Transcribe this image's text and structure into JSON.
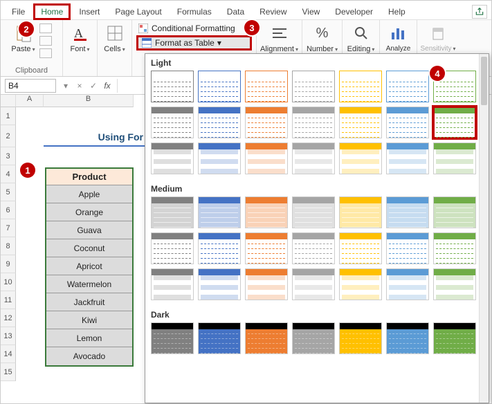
{
  "tabs": {
    "file": "File",
    "home": "Home",
    "insert": "Insert",
    "page_layout": "Page Layout",
    "formulas": "Formulas",
    "data": "Data",
    "review": "Review",
    "view": "View",
    "developer": "Developer",
    "help": "Help"
  },
  "ribbon": {
    "clipboard": {
      "label": "Clipboard",
      "paste": "Paste"
    },
    "font": {
      "label": "Font"
    },
    "cells": {
      "label": "Cells"
    },
    "styles": {
      "conditional": "Conditional Formatting",
      "format_table": "Format as Table",
      "dropdown_glyph": "▾"
    },
    "alignment": {
      "label": "Alignment"
    },
    "number": {
      "label": "Number"
    },
    "editing": {
      "label": "Editing"
    },
    "analyze": {
      "label": "Analyze"
    },
    "sensitivity": {
      "label": "Sensitivity"
    }
  },
  "callouts": {
    "b1": "1",
    "b2": "2",
    "b3": "3",
    "b4": "4"
  },
  "formula_bar": {
    "cell_ref": "B4",
    "fx": "fx"
  },
  "columns": {
    "corner": "",
    "A_w": 40,
    "B_w": 130
  },
  "col_labels": [
    "A",
    "B"
  ],
  "row_labels": [
    "1",
    "2",
    "3",
    "4",
    "5",
    "6",
    "7",
    "8",
    "9",
    "10",
    "11",
    "12",
    "13",
    "14",
    "15"
  ],
  "title_cell": "Using For",
  "table": {
    "header": "Product",
    "rows": [
      "Apple",
      "Orange",
      "Guava",
      "Coconut",
      "Apricot",
      "Watermelon",
      "Jackfruit",
      "Kiwi",
      "Lemon",
      "Avocado"
    ]
  },
  "gallery": {
    "sections": {
      "light": "Light",
      "medium": "Medium",
      "dark": "Dark"
    },
    "palette": {
      "neutral": "#808080",
      "blue": "#4472c4",
      "orange": "#ed7d31",
      "gray": "#a5a5a5",
      "gold": "#ffc000",
      "teal": "#5b9bd5",
      "green": "#70ad47"
    },
    "light_row1_header_alpha": 0.0,
    "light_row2_header_alpha": 1.0,
    "medium_header_alpha": 1.0
  }
}
